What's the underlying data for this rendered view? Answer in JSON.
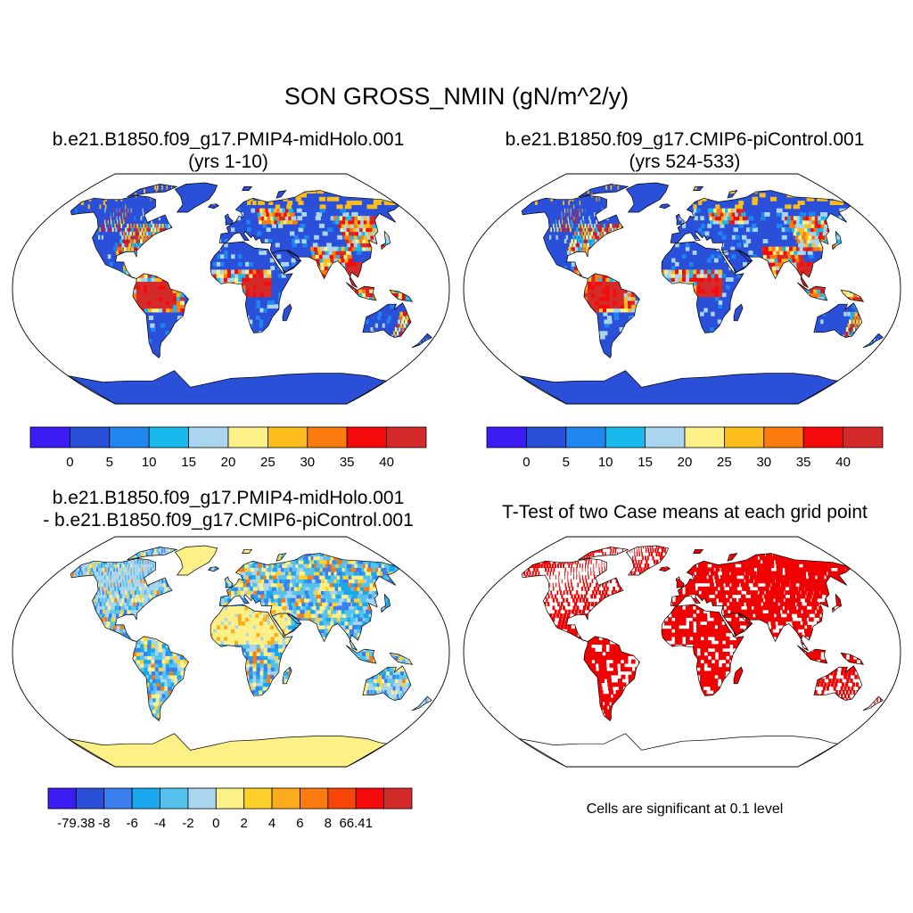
{
  "figure": {
    "title": "SON GROSS_NMIN (gN/m^2/y)"
  },
  "panels": [
    {
      "id": "midholo",
      "title_lines": [
        "b.e21.B1850.f09_g17.PMIP4-midHolo.001",
        "(yrs 1-10)"
      ],
      "palette": "abs"
    },
    {
      "id": "picontrol",
      "title_lines": [
        "b.e21.B1850.f09_g17.CMIP6-piControl.001",
        "(yrs 524-533)"
      ],
      "palette": "abs"
    },
    {
      "id": "difference",
      "title_lines": [
        "b.e21.B1850.f09_g17.PMIP4-midHolo.001",
        "- b.e21.B1850.f09_g17.CMIP6-piControl.001"
      ],
      "palette": "diff"
    },
    {
      "id": "ttest",
      "title_lines": [
        "T-Test of two Case means at each grid point"
      ],
      "palette": "sig",
      "note": "Cells are significant at 0.1 level"
    }
  ],
  "colorbars": {
    "abs": {
      "colors": [
        "#3b1cf5",
        "#2a4fd8",
        "#1f86f0",
        "#19b9ee",
        "#a9d6ee",
        "#fdf087",
        "#fbbd1b",
        "#fb7b0f",
        "#f40a0a",
        "#d42a2a"
      ],
      "tick_labels": [
        "0",
        "5",
        "10",
        "15",
        "20",
        "25",
        "30",
        "35",
        "40"
      ]
    },
    "diff": {
      "colors": [
        "#3b1cf5",
        "#2a4fd8",
        "#3a7ef0",
        "#19a8ee",
        "#55c2ee",
        "#a9d6ee",
        "#fdf087",
        "#fdd02a",
        "#fbab1b",
        "#fb7b0f",
        "#f7460a",
        "#f40a0a",
        "#d42a2a"
      ],
      "tick_labels": [
        "-79.38",
        "-8",
        "-6",
        "-4",
        "-2",
        "0",
        "2",
        "4",
        "6",
        "8",
        "66.41"
      ]
    }
  },
  "colors": {
    "sig": "#f00000",
    "ocean": "#ffffff",
    "antarctica_abs": "#2a4fd8",
    "antarctica_diff": "#fdf087",
    "greenland_abs": "#2a4fd8",
    "greenland_diff": "#fdf087",
    "land_abs_base": "#2a4fd8",
    "land_diff_base": "#a9d6ee",
    "tropics_abs": "#d42a2a"
  }
}
